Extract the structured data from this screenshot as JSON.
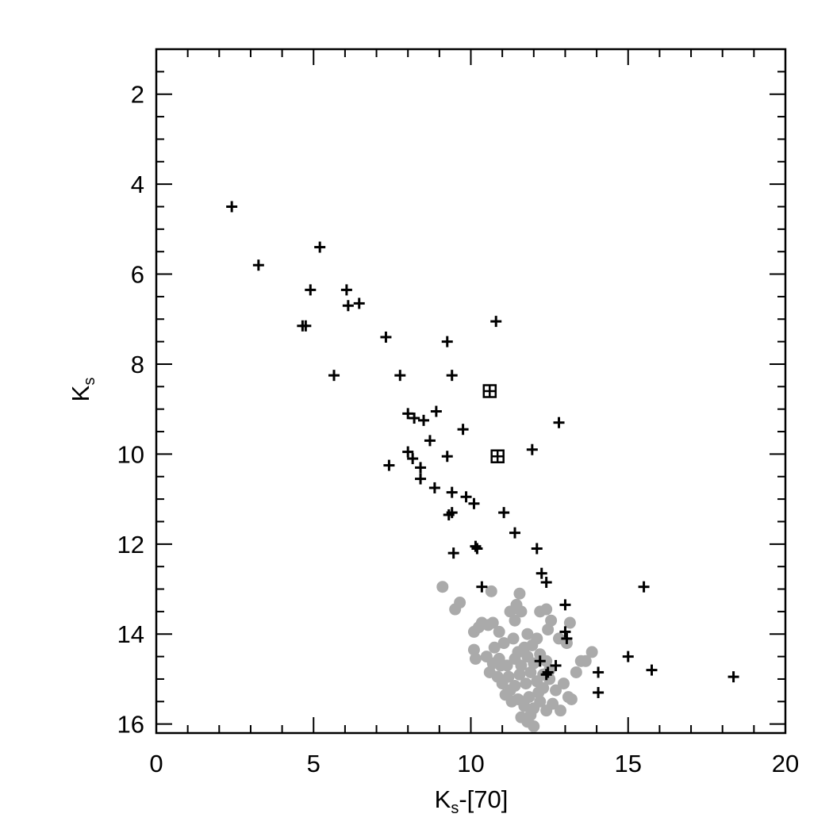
{
  "chart_data": {
    "type": "scatter",
    "title": "",
    "xlabel": {
      "main": "K",
      "sub": "s",
      "suffix": "-[70]"
    },
    "ylabel": {
      "main": "K",
      "sub": "s"
    },
    "xlim": [
      0,
      20
    ],
    "ylim": [
      16.2,
      1.0
    ],
    "y_inverted": true,
    "grid": false,
    "x_ticks": [
      "0",
      "5",
      "10",
      "15",
      "20"
    ],
    "x_tick_values": [
      0,
      5,
      10,
      15,
      20
    ],
    "y_ticks": [
      "2",
      "4",
      "6",
      "8",
      "10",
      "12",
      "14",
      "16"
    ],
    "y_tick_values": [
      2,
      4,
      6,
      8,
      10,
      12,
      14,
      16
    ],
    "colors": {
      "plus": "#000000",
      "box": "#000000",
      "gray": "#aaaaaa"
    },
    "series": [
      {
        "marker": "plus",
        "points": [
          [
            2.4,
            4.5
          ],
          [
            3.25,
            5.8
          ],
          [
            5.2,
            5.4
          ],
          [
            4.9,
            6.35
          ],
          [
            4.75,
            7.15
          ],
          [
            4.65,
            7.15
          ],
          [
            6.05,
            6.35
          ],
          [
            6.1,
            6.7
          ],
          [
            6.45,
            6.65
          ],
          [
            5.65,
            8.25
          ],
          [
            7.3,
            7.4
          ],
          [
            7.75,
            8.25
          ],
          [
            9.25,
            7.5
          ],
          [
            10.8,
            7.05
          ],
          [
            9.4,
            8.25
          ],
          [
            8.0,
            9.1
          ],
          [
            8.2,
            9.2
          ],
          [
            8.5,
            9.25
          ],
          [
            8.9,
            9.05
          ],
          [
            9.75,
            9.45
          ],
          [
            8.7,
            9.7
          ],
          [
            12.8,
            9.3
          ],
          [
            11.95,
            9.9
          ],
          [
            8.0,
            9.95
          ],
          [
            8.15,
            10.1
          ],
          [
            9.25,
            10.05
          ],
          [
            7.4,
            10.25
          ],
          [
            8.4,
            10.3
          ],
          [
            8.4,
            10.55
          ],
          [
            8.85,
            10.75
          ],
          [
            9.4,
            10.85
          ],
          [
            9.85,
            10.95
          ],
          [
            10.1,
            11.1
          ],
          [
            11.05,
            11.3
          ],
          [
            9.3,
            11.35
          ],
          [
            9.4,
            11.3
          ],
          [
            11.4,
            11.75
          ],
          [
            10.15,
            12.05
          ],
          [
            10.2,
            12.1
          ],
          [
            12.1,
            12.1
          ],
          [
            9.45,
            12.2
          ],
          [
            12.25,
            12.65
          ],
          [
            12.4,
            12.85
          ],
          [
            10.35,
            12.95
          ],
          [
            15.5,
            12.95
          ],
          [
            13.0,
            13.35
          ],
          [
            13.0,
            13.95
          ],
          [
            13.05,
            14.1
          ],
          [
            12.2,
            14.6
          ],
          [
            12.7,
            14.7
          ],
          [
            12.45,
            14.85
          ],
          [
            12.4,
            14.9
          ],
          [
            14.05,
            14.85
          ],
          [
            15.0,
            14.5
          ],
          [
            15.75,
            14.8
          ],
          [
            14.05,
            15.3
          ],
          [
            18.35,
            14.95
          ]
        ]
      },
      {
        "marker": "boxplus",
        "points": [
          [
            10.6,
            8.6
          ],
          [
            10.85,
            10.05
          ]
        ]
      },
      {
        "marker": "gray-dot",
        "points": [
          [
            9.1,
            12.95
          ],
          [
            9.5,
            13.45
          ],
          [
            9.65,
            13.3
          ],
          [
            10.65,
            13.05
          ],
          [
            11.55,
            13.1
          ],
          [
            10.35,
            13.75
          ],
          [
            10.55,
            13.8
          ],
          [
            10.7,
            13.75
          ],
          [
            10.1,
            13.95
          ],
          [
            10.25,
            13.85
          ],
          [
            11.25,
            13.5
          ],
          [
            11.45,
            13.35
          ],
          [
            11.6,
            13.5
          ],
          [
            12.2,
            13.5
          ],
          [
            12.4,
            13.45
          ],
          [
            12.45,
            13.9
          ],
          [
            12.55,
            13.7
          ],
          [
            12.8,
            14.1
          ],
          [
            13.15,
            13.75
          ],
          [
            13.05,
            14.2
          ],
          [
            10.1,
            14.35
          ],
          [
            10.15,
            14.55
          ],
          [
            10.9,
            13.95
          ],
          [
            11.05,
            14.2
          ],
          [
            11.35,
            14.1
          ],
          [
            11.8,
            14.0
          ],
          [
            11.95,
            14.25
          ],
          [
            12.1,
            14.1
          ],
          [
            10.5,
            14.5
          ],
          [
            10.7,
            14.65
          ],
          [
            10.9,
            14.55
          ],
          [
            11.15,
            14.7
          ],
          [
            11.4,
            14.55
          ],
          [
            11.6,
            14.7
          ],
          [
            11.8,
            14.5
          ],
          [
            12.0,
            14.65
          ],
          [
            12.2,
            14.45
          ],
          [
            12.4,
            14.6
          ],
          [
            12.5,
            14.8
          ],
          [
            10.6,
            14.85
          ],
          [
            10.85,
            14.95
          ],
          [
            11.0,
            15.1
          ],
          [
            11.2,
            14.95
          ],
          [
            11.4,
            15.15
          ],
          [
            11.55,
            14.9
          ],
          [
            11.75,
            15.1
          ],
          [
            11.9,
            14.85
          ],
          [
            12.1,
            15.05
          ],
          [
            12.3,
            15.2
          ],
          [
            12.5,
            15.0
          ],
          [
            12.7,
            15.25
          ],
          [
            12.95,
            15.1
          ],
          [
            13.1,
            15.4
          ],
          [
            13.2,
            15.45
          ],
          [
            11.1,
            15.35
          ],
          [
            11.3,
            15.5
          ],
          [
            11.5,
            15.45
          ],
          [
            11.7,
            15.6
          ],
          [
            11.85,
            15.4
          ],
          [
            12.0,
            15.65
          ],
          [
            12.2,
            15.5
          ],
          [
            12.4,
            15.7
          ],
          [
            12.6,
            15.55
          ],
          [
            12.85,
            15.7
          ],
          [
            11.6,
            15.85
          ],
          [
            11.8,
            15.95
          ],
          [
            12.0,
            16.05
          ],
          [
            11.9,
            15.8
          ],
          [
            13.35,
            14.85
          ],
          [
            13.5,
            14.6
          ],
          [
            13.65,
            14.6
          ],
          [
            13.85,
            14.4
          ],
          [
            11.4,
            13.7
          ],
          [
            10.95,
            14.7
          ],
          [
            11.7,
            14.3
          ],
          [
            12.3,
            14.9
          ],
          [
            11.25,
            15.25
          ],
          [
            12.15,
            15.3
          ],
          [
            10.75,
            14.3
          ],
          [
            11.5,
            14.4
          ]
        ]
      }
    ]
  }
}
